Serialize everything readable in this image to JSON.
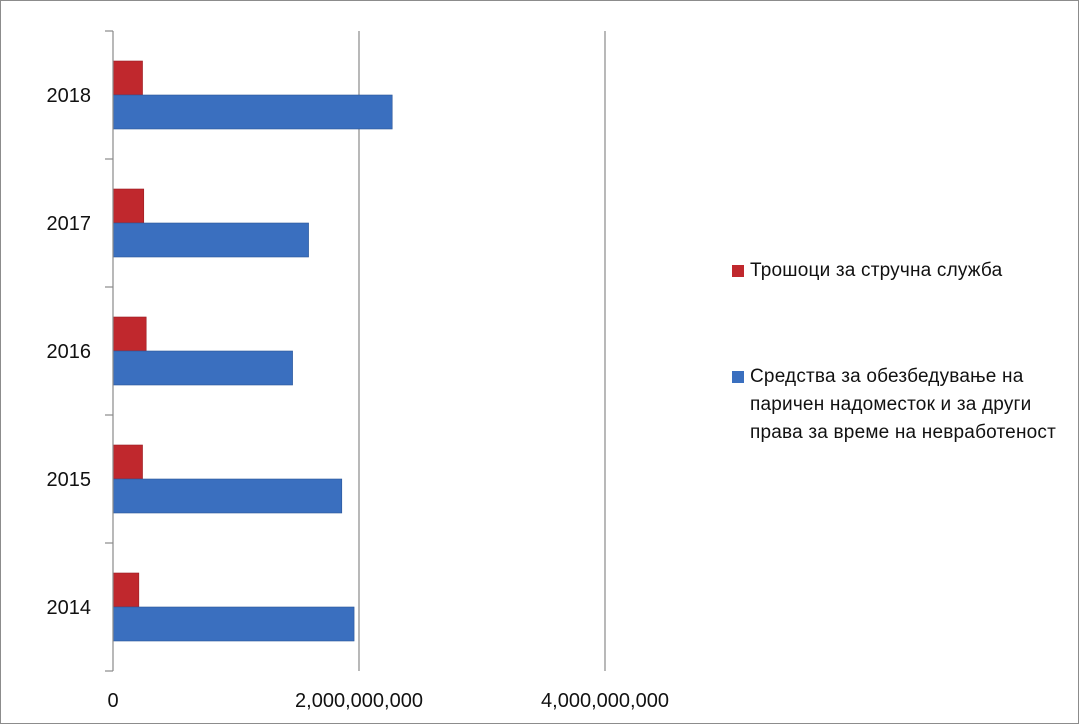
{
  "chart_data": {
    "type": "bar",
    "orientation": "horizontal",
    "categories": [
      "2014",
      "2015",
      "2016",
      "2017",
      "2018"
    ],
    "series": [
      {
        "name": "Средства за обезбедување на паричен надоместок и за други права за време на невработеност",
        "color": "#3a6fbf",
        "values": [
          1960000000,
          1860000000,
          1460000000,
          1590000000,
          2270000000
        ]
      },
      {
        "name": "Трошоци за стручна служба",
        "color": "#c0282d",
        "values": [
          210000000,
          240000000,
          270000000,
          250000000,
          240000000
        ]
      }
    ],
    "xlim": [
      0,
      4000000000
    ],
    "x_ticks": [
      0,
      2000000000,
      4000000000
    ],
    "x_tick_labels": [
      "0",
      "2,000,000,000",
      "4,000,000,000"
    ],
    "grid": "vertical",
    "legend_position": "right",
    "legend_order": [
      "Трошоци за стручна служба",
      "Средства за обезбедување на паричен надоместок и за други права за време на невработеност"
    ]
  }
}
